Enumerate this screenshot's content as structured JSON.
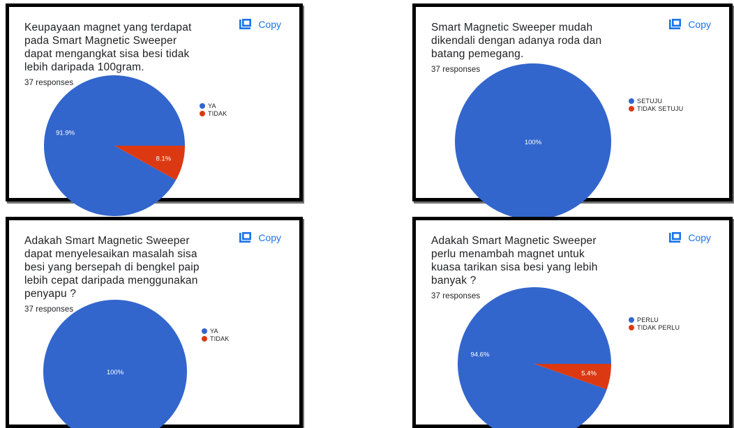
{
  "colors": {
    "primary": "#3366cc",
    "secondary": "#dc3912",
    "link": "#1a73e8"
  },
  "copy_label": "Copy",
  "copy_icon": "copy-icon",
  "chart_data": [
    {
      "type": "pie",
      "title": "Keupayaan magnet yang terdapat pada Smart Magnetic Sweeper dapat mengangkat sisa besi tidak lebih daripada 100gram.",
      "responses": "37 responses",
      "categories": [
        "YA",
        "TIDAK"
      ],
      "values": [
        91.9,
        8.1
      ],
      "labels": [
        "91.9%",
        "8.1%"
      ],
      "colors": [
        "#3366cc",
        "#dc3912"
      ],
      "legend": "right"
    },
    {
      "type": "pie",
      "title": "Smart Magnetic Sweeper mudah dikendali dengan adanya roda dan batang pemegang.",
      "responses": "37 responses",
      "categories": [
        "SETUJU",
        "TIDAK SETUJU"
      ],
      "values": [
        100,
        0
      ],
      "labels": [
        "100%",
        ""
      ],
      "colors": [
        "#3366cc",
        "#dc3912"
      ],
      "legend": "right"
    },
    {
      "type": "pie",
      "title": "Adakah Smart Magnetic Sweeper dapat menyelesaikan masalah sisa besi yang bersepah di bengkel paip lebih cepat daripada menggunakan penyapu ?",
      "responses": "37 responses",
      "categories": [
        "YA",
        "TIDAK"
      ],
      "values": [
        100,
        0
      ],
      "labels": [
        "100%",
        ""
      ],
      "colors": [
        "#3366cc",
        "#dc3912"
      ],
      "legend": "right"
    },
    {
      "type": "pie",
      "title": "Adakah Smart Magnetic Sweeper perlu menambah magnet untuk kuasa tarikan sisa besi yang lebih banyak ?",
      "responses": "37 responses",
      "categories": [
        "PERLU",
        "TIDAK PERLU"
      ],
      "values": [
        94.6,
        5.4
      ],
      "labels": [
        "94.6%",
        "5.4%"
      ],
      "colors": [
        "#3366cc",
        "#dc3912"
      ],
      "legend": "right"
    }
  ]
}
